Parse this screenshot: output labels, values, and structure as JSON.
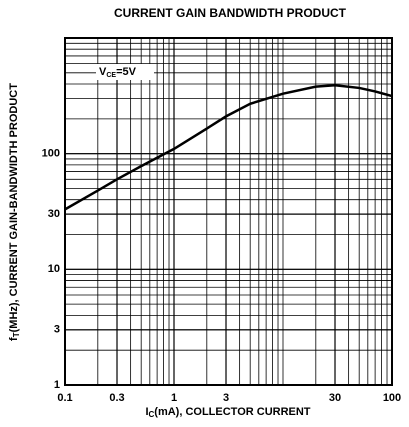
{
  "chart_data": {
    "type": "line",
    "title": "CURRENT GAIN BANDWIDTH PRODUCT",
    "x_label": [
      "I",
      "C",
      "(mA), COLLECTOR CURRENT"
    ],
    "y_label": [
      "f",
      "T",
      "(MHz), CURRENT GAIN-BANDWIDTH PRODUCT"
    ],
    "annotation": [
      "V",
      "CE",
      "=5V"
    ],
    "log_x": true,
    "log_y": true,
    "grid": true,
    "xlim": [
      0.1,
      100
    ],
    "ylim": [
      1,
      1000
    ],
    "xticks": [
      0.1,
      0.3,
      1,
      3,
      30,
      100
    ],
    "yticks": [
      1,
      3,
      10,
      30,
      100
    ],
    "series": [
      {
        "color": "#000000",
        "x": [
          0.1,
          0.2,
          0.3,
          0.5,
          1,
          2,
          3,
          5,
          10,
          20,
          30,
          50,
          70,
          100
        ],
        "values": [
          33,
          48,
          60,
          78,
          110,
          165,
          210,
          270,
          330,
          380,
          390,
          370,
          345,
          315
        ]
      }
    ]
  }
}
